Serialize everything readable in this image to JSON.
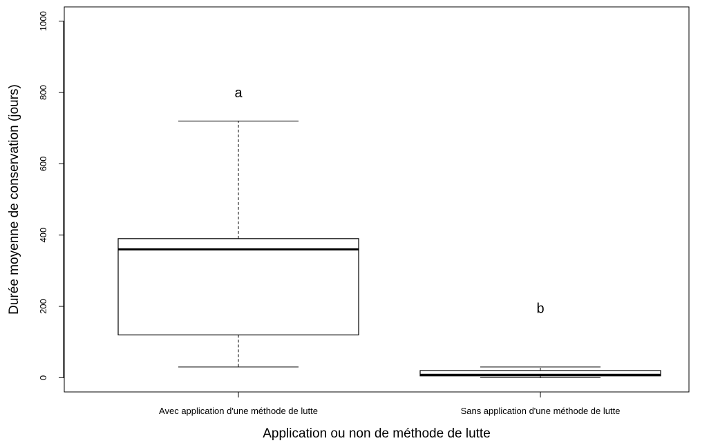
{
  "chart_data": {
    "type": "box",
    "xlabel": "Application ou non de méthode de lutte",
    "ylabel": "Durée moyenne de conservation (jours)",
    "ylim": [
      -40,
      1040
    ],
    "yticks": [
      "0",
      "200",
      "400",
      "600",
      "800",
      "1000"
    ],
    "ytick_values": [
      0,
      200,
      400,
      600,
      800,
      1000
    ],
    "grid": false,
    "categories": [
      "Avec application d'une méthode de lutte",
      "Sans application d'une méthode de lutte"
    ],
    "boxes": [
      {
        "whisker_low": 30,
        "q1": 120,
        "median": 360,
        "q3": 390,
        "whisker_high": 720,
        "letter": "a",
        "letter_y": 800
      },
      {
        "whisker_low": 0,
        "q1": 5,
        "median": 8,
        "q3": 20,
        "whisker_high": 30,
        "letter": "b",
        "letter_y": 195
      }
    ]
  }
}
